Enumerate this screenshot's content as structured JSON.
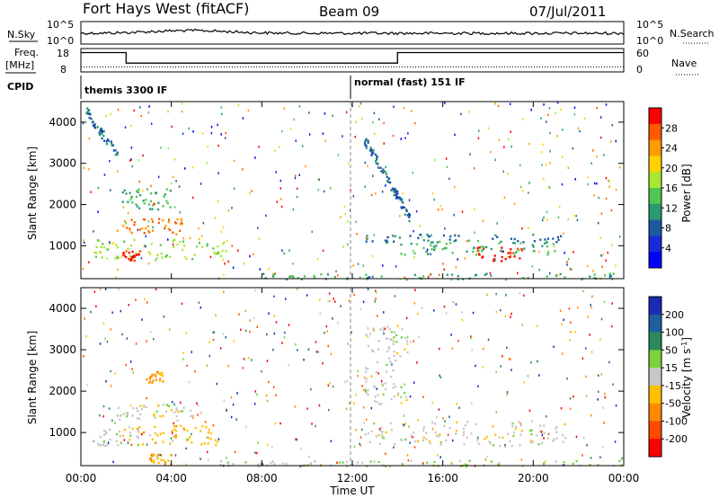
{
  "header": {
    "station": "Fort Hays West (fitACF)",
    "beam": "Beam 09",
    "date": "07/Jul/2011"
  },
  "noise_panel": {
    "left_label": "N.Sky",
    "left_ticks": [
      "10^5",
      "10^0"
    ],
    "right_label": "N.Search",
    "right_ticks": [
      "10^5",
      "10^0"
    ]
  },
  "freq_panel": {
    "left_label_1": "Freq.",
    "left_label_2": "[MHz]",
    "left_ticks": [
      "18",
      "8"
    ],
    "right_label": "Nave",
    "right_ticks": [
      "60",
      "0"
    ]
  },
  "cpid": {
    "label": "CPID",
    "programs": [
      {
        "name": "themis 3300 IF",
        "start_hour": 0
      },
      {
        "name": "normal (fast) 151 IF",
        "start_hour": 12
      }
    ]
  },
  "x_axis": {
    "title": "Time UT",
    "ticks": [
      "00:00",
      "04:00",
      "08:00",
      "12:00",
      "16:00",
      "20:00",
      "00:00"
    ]
  },
  "power_colorbar": {
    "title": "Power [dB]",
    "ticks": [
      "28",
      "24",
      "20",
      "16",
      "12",
      "8",
      "4"
    ],
    "colors": [
      "#ff0000",
      "#ff5a00",
      "#ff9a00",
      "#ffd200",
      "#a8e830",
      "#4ec850",
      "#2a9a6e",
      "#1c5aa0",
      "#1a2ad8",
      "#0000ff"
    ]
  },
  "velocity_colorbar": {
    "title": "Velocity [m s",
    "title_superscript": "-1",
    "title_end": "]",
    "ticks": [
      "200",
      "100",
      "50",
      "15",
      "-15",
      "-50",
      "-100",
      "-200"
    ],
    "colors": [
      "#1a2ab4",
      "#1f5fa0",
      "#2a8a5a",
      "#7ad23c",
      "#c8c8c8",
      "#ffc000",
      "#ff8a00",
      "#ff4a00",
      "#ff0000"
    ]
  },
  "chart_data": [
    {
      "type": "line",
      "name": "N.Sky / N.Search noise",
      "x_range_hours": [
        0,
        24
      ],
      "y_scale": "log",
      "ylim": [
        1,
        100000
      ],
      "trend": "noisy black trace near upper part of panel with spikes around 04:00–07:00"
    },
    {
      "type": "line",
      "name": "Freq / Nave",
      "x_range_hours": [
        0,
        24
      ],
      "series": [
        {
          "name": "Freq. [MHz]",
          "x": [
            0,
            2,
            2,
            14,
            14,
            24
          ],
          "values": [
            15.5,
            15.5,
            11.0,
            11.0,
            15.5,
            15.5
          ]
        },
        {
          "name": "Nave",
          "x": [
            0,
            24
          ],
          "values": [
            15,
            15
          ],
          "style": "dotted"
        }
      ]
    },
    {
      "type": "heatmap",
      "title": "Power [dB]",
      "ylabel": "Slant Range [km]",
      "xlabel": "Time UT",
      "x_range_hours": [
        0,
        24
      ],
      "ylim": [
        200,
        4500
      ],
      "y_ticks": [
        1000,
        2000,
        3000,
        4000
      ],
      "color_range": [
        0,
        30
      ],
      "features": [
        {
          "t0": 0.2,
          "t1": 1.6,
          "r0": 3200,
          "r1": 4300,
          "value": 8,
          "shape": "descending-arc"
        },
        {
          "t0": 1.8,
          "t1": 4.0,
          "r0": 1900,
          "r1": 2400,
          "value": 12
        },
        {
          "t0": 1.5,
          "t1": 4.5,
          "r0": 1300,
          "r1": 1700,
          "value": 24
        },
        {
          "t0": 0.5,
          "t1": 6.5,
          "r0": 700,
          "r1": 1200,
          "value": 16
        },
        {
          "t0": 1.8,
          "t1": 2.6,
          "r0": 650,
          "r1": 900,
          "value": 28
        },
        {
          "t0": 8.0,
          "t1": 24.0,
          "r0": 200,
          "r1": 350,
          "value": 12
        },
        {
          "t0": 12.5,
          "t1": 14.5,
          "r0": 1700,
          "r1": 3600,
          "value": 8,
          "shape": "descending-arc"
        },
        {
          "t0": 12.5,
          "t1": 21.5,
          "r0": 1100,
          "r1": 1300,
          "value": 8
        },
        {
          "t0": 17.5,
          "t1": 19.5,
          "r0": 650,
          "r1": 1000,
          "value": 28
        },
        {
          "t0": 14.0,
          "t1": 21.0,
          "r0": 800,
          "r1": 1150,
          "value": 12
        }
      ]
    },
    {
      "type": "heatmap",
      "title": "Velocity [m s-1]",
      "ylabel": "Slant Range [km]",
      "xlabel": "Time UT",
      "x_range_hours": [
        0,
        24
      ],
      "ylim": [
        200,
        4500
      ],
      "y_ticks": [
        1000,
        2000,
        3000,
        4000
      ],
      "color_range": [
        -250,
        250
      ],
      "features": [
        {
          "t0": 2.8,
          "t1": 3.6,
          "r0": 2200,
          "r1": 2500,
          "value": -80
        },
        {
          "t0": 1.5,
          "t1": 5.5,
          "r0": 1300,
          "r1": 1700,
          "value": 0
        },
        {
          "t0": 0.5,
          "t1": 2.5,
          "r0": 700,
          "r1": 1100,
          "value": 0
        },
        {
          "t0": 2.0,
          "t1": 6.0,
          "r0": 700,
          "r1": 1200,
          "value": -60
        },
        {
          "t0": 3.0,
          "t1": 4.0,
          "r0": 250,
          "r1": 500,
          "value": -80
        },
        {
          "t0": 6.0,
          "t1": 24.0,
          "r0": 200,
          "r1": 350,
          "value": 30
        },
        {
          "t0": 12.5,
          "t1": 14.5,
          "r0": 1700,
          "r1": 3600,
          "value": 0
        },
        {
          "t0": 12.5,
          "t1": 21.5,
          "r0": 700,
          "r1": 1300,
          "value": 0
        }
      ]
    }
  ]
}
